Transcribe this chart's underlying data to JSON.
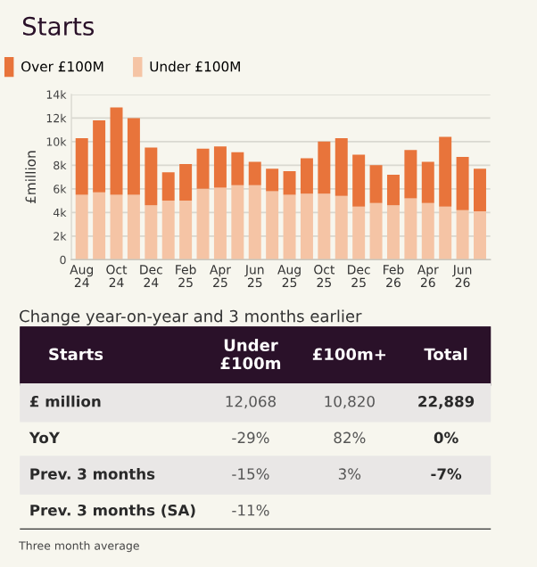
{
  "chart_data": [
    {
      "type": "bar",
      "title": "Starts",
      "ylabel": "£million",
      "stacked": true,
      "grid": "y",
      "legend": "top left",
      "categories": [
        "Aug 24",
        null,
        "Oct 24",
        null,
        "Dec 24",
        null,
        "Feb 25",
        null,
        "Apr 25",
        null,
        "Jun 25",
        null,
        "Aug 25",
        null,
        "Oct 25",
        null,
        "Dec 25",
        null,
        "Feb 26",
        null,
        "Apr 26",
        null,
        "Jun 26",
        null
      ],
      "series": [
        {
          "name": "Under £100M",
          "color": "#f5c4a5",
          "values": [
            5500,
            5700,
            5500,
            5500,
            4600,
            5000,
            5000,
            6000,
            6100,
            6300,
            6300,
            5800,
            5500,
            5600,
            5600,
            5400,
            4500,
            4800,
            4600,
            5200,
            4800,
            4500,
            4200,
            4100
          ]
        },
        {
          "name": "Over £100M",
          "color": "#e8743b",
          "values": [
            4800,
            6100,
            7400,
            6500,
            4900,
            2400,
            3100,
            3400,
            3500,
            2800,
            2000,
            1900,
            2000,
            3000,
            4400,
            4900,
            4400,
            3200,
            2600,
            4100,
            3500,
            5900,
            4500,
            3600
          ]
        }
      ],
      "ylim": [
        0,
        14000
      ],
      "yticks": [
        0,
        {
          "value": 2000,
          "label": "2k"
        },
        {
          "value": 4000,
          "label": "4k"
        },
        {
          "value": 6000,
          "label": "6k"
        },
        {
          "value": 8000,
          "label": "8k"
        },
        {
          "value": 10000,
          "label": "10k"
        },
        {
          "value": 12000,
          "label": "12k"
        },
        {
          "value": 14000,
          "label": "14k"
        }
      ]
    },
    {
      "type": "other",
      "title": "Change year-on-year and 3 months earlier",
      "categories": [
        "Starts",
        "Under £100m",
        "£100m+",
        "Total"
      ],
      "y_categories": [
        "£ million",
        "YoY",
        "Prev. 3 months",
        "Prev. 3 months (SA)"
      ],
      "cell_labels": [
        [
          "12,068",
          "10,820",
          "22,889"
        ],
        [
          "-29%",
          "82%",
          "0%"
        ],
        [
          "-15%",
          "3%",
          "-7%"
        ],
        [
          "-11%",
          null,
          null
        ]
      ],
      "annotations": [
        "Three month average"
      ]
    }
  ]
}
